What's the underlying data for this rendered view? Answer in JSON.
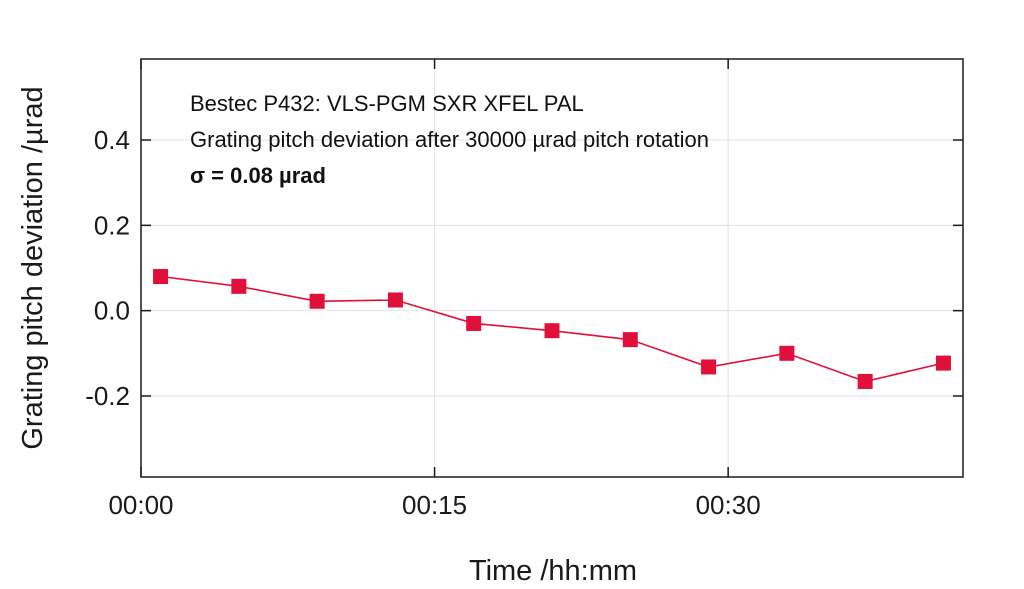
{
  "chart_data": {
    "type": "line",
    "xlabel": "Time /hh:mm",
    "ylabel": "Grating pitch deviation /µrad",
    "x_tick_labels": [
      "00:00",
      "00:15",
      "00:30"
    ],
    "x_ticks_minutes": [
      0,
      15,
      30
    ],
    "y_ticks": [
      0.4,
      0.2,
      0.0,
      -0.2
    ],
    "y_tick_labels": [
      "0.4",
      "0.2",
      "0.0",
      "-0.2"
    ],
    "xlim_minutes": [
      0,
      42
    ],
    "ylim": [
      -0.39,
      0.59
    ],
    "grid": true,
    "annotations": [
      "Bestec P432: VLS-PGM SXR XFEL PAL",
      "Grating pitch deviation after 30000 µrad pitch rotation",
      "σ = 0.08 µrad"
    ],
    "series": [
      {
        "color": "#e0103a",
        "marker": "square",
        "x_minutes": [
          1,
          5,
          9,
          13,
          17,
          21,
          25,
          29,
          33,
          37,
          41
        ],
        "values": [
          0.08,
          0.057,
          0.022,
          0.025,
          -0.03,
          -0.047,
          -0.068,
          -0.132,
          -0.1,
          -0.166,
          -0.123
        ]
      }
    ]
  }
}
